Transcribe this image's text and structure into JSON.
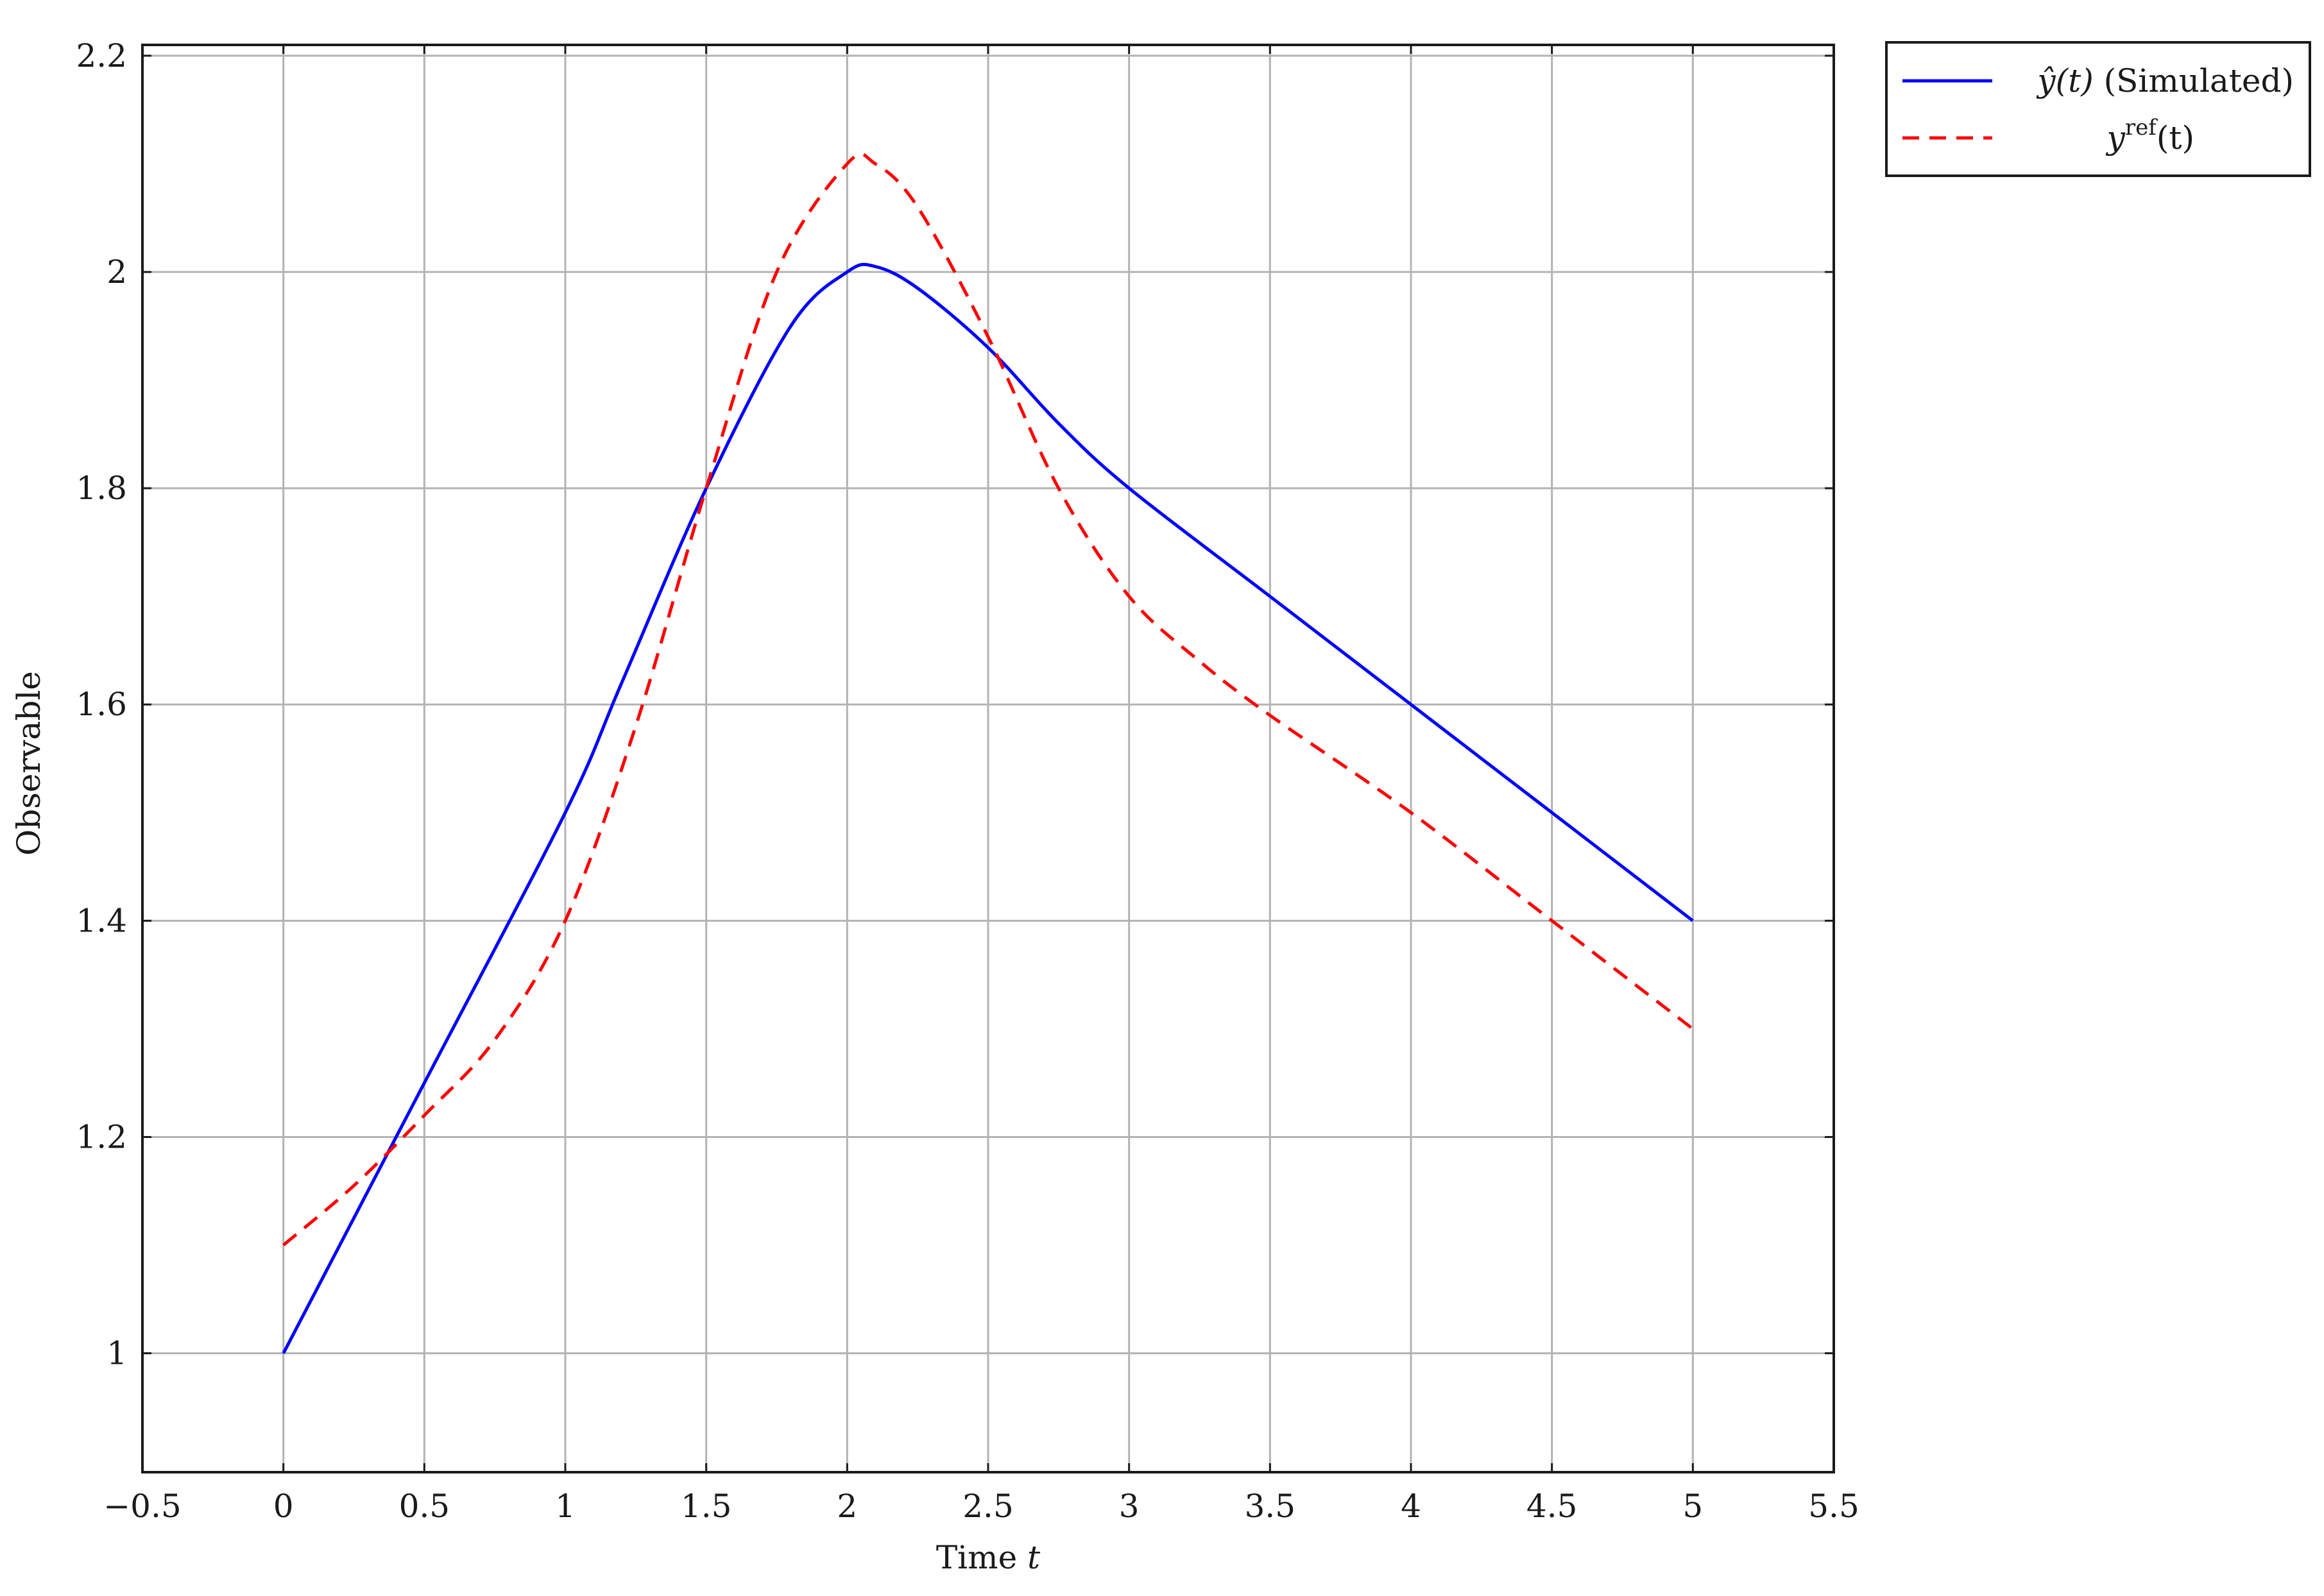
{
  "chart_data": {
    "type": "line",
    "xlabel": "Time",
    "xlabel_var": "t",
    "ylabel": "Observable",
    "xlim": [
      -0.5,
      5.5
    ],
    "ylim": [
      0.89,
      2.21
    ],
    "x_ticks": [
      "−0.5",
      "0",
      "0.5",
      "1",
      "1.5",
      "2",
      "2.5",
      "3",
      "3.5",
      "4",
      "4.5",
      "5",
      "5.5"
    ],
    "x_tick_values": [
      -0.5,
      0,
      0.5,
      1,
      1.5,
      2,
      2.5,
      3,
      3.5,
      4,
      4.5,
      5,
      5.5
    ],
    "y_ticks": [
      "1",
      "1.2",
      "1.4",
      "1.6",
      "1.8",
      "2",
      "2.2"
    ],
    "y_tick_values": [
      1,
      1.2,
      1.4,
      1.6,
      1.8,
      2,
      2.2
    ],
    "grid": true,
    "legend_position": "outside top-right",
    "series": [
      {
        "name": "ŷ(t) (Simulated)",
        "legend_math": "ŷ(t)",
        "legend_suffix": "(Simulated)",
        "color": "#0000ff",
        "style": "solid",
        "x": [
          0,
          0.5,
          1,
          1.2,
          1.5,
          1.8,
          2.0,
          2.1,
          2.25,
          2.5,
          2.75,
          3.0,
          3.5,
          4.0,
          4.5,
          5.0
        ],
        "y": [
          1.0,
          1.25,
          1.5,
          1.62,
          1.8,
          1.95,
          2.0,
          2.005,
          1.985,
          1.93,
          1.86,
          1.8,
          1.7,
          1.6,
          1.5,
          1.4
        ]
      },
      {
        "name": "y^ref(t)",
        "legend_math": "y",
        "legend_sup": "ref",
        "legend_after": "(t)",
        "color": "#ff0000",
        "style": "dashed",
        "x": [
          0,
          0.25,
          0.5,
          0.75,
          1.0,
          1.25,
          1.5,
          1.75,
          2.0,
          2.1,
          2.25,
          2.5,
          2.75,
          3.0,
          3.25,
          3.5,
          4.0,
          4.5,
          5.0
        ],
        "y": [
          1.1,
          1.155,
          1.22,
          1.29,
          1.4,
          1.58,
          1.8,
          2.0,
          2.1,
          2.1,
          2.06,
          1.94,
          1.8,
          1.7,
          1.64,
          1.59,
          1.5,
          1.4,
          1.3
        ]
      }
    ]
  }
}
